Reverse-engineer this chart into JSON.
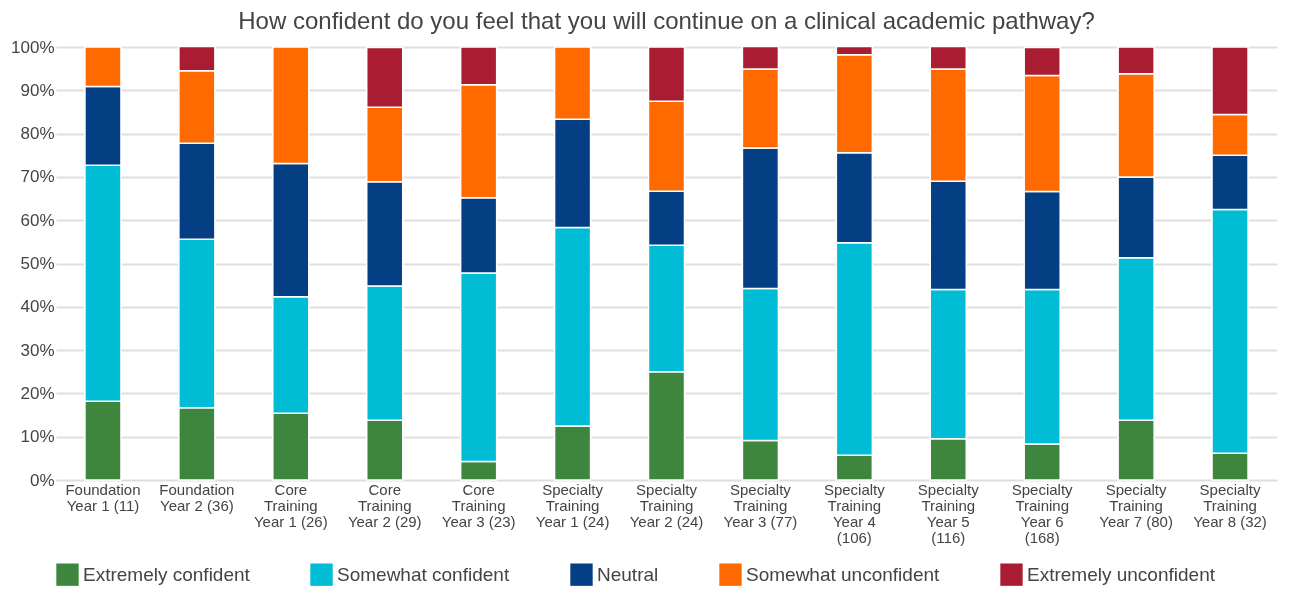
{
  "chart_data": {
    "type": "bar",
    "stacked": true,
    "title": "How confident do you feel that you will continue on a clinical academic pathway?",
    "categories": [
      "Foundation Year 1 (11)",
      "Foundation Year 2 (36)",
      "Core Training Year 1 (26)",
      "Core Training Year 2 (29)",
      "Core Training Year 3 (23)",
      "Specialty Training Year 1 (24)",
      "Specialty Training Year 2 (24)",
      "Specialty Training Year 3 (77)",
      "Specialty Training Year 4 (106)",
      "Specialty Training Year 5 (116)",
      "Specialty Training Year 6 (168)",
      "Specialty Training Year 7 (80)",
      "Specialty Training Year 8 (32)"
    ],
    "series": [
      {
        "name": "Extremely confident",
        "color": "#3e853e",
        "values": [
          18.2,
          16.7,
          15.4,
          13.8,
          4.3,
          12.5,
          25.0,
          9.1,
          5.7,
          9.5,
          8.3,
          13.8,
          6.2
        ]
      },
      {
        "name": "Somewhat confident",
        "color": "#00bcd4",
        "values": [
          54.5,
          38.9,
          26.9,
          31.0,
          43.5,
          45.8,
          29.2,
          35.1,
          49.1,
          34.5,
          35.7,
          37.5,
          56.3
        ]
      },
      {
        "name": "Neutral",
        "color": "#053f83",
        "values": [
          18.2,
          22.2,
          30.8,
          24.1,
          17.4,
          25.0,
          12.5,
          32.5,
          20.8,
          25.0,
          22.6,
          18.7,
          12.5
        ]
      },
      {
        "name": "Somewhat unconfident",
        "color": "#ff6a00",
        "values": [
          9.1,
          16.7,
          26.9,
          17.2,
          26.1,
          16.7,
          20.8,
          18.2,
          22.6,
          25.9,
          26.8,
          23.8,
          9.4
        ]
      },
      {
        "name": "Extremely unconfident",
        "color": "#a91c31",
        "values": [
          null,
          5.6,
          null,
          13.8,
          8.7,
          null,
          12.5,
          5.2,
          1.9,
          5.2,
          6.5,
          6.2,
          15.6
        ]
      }
    ],
    "ylim": [
      0,
      100
    ],
    "yticks": [
      {
        "value": 0,
        "label": "0%"
      },
      {
        "value": 10,
        "label": "10%"
      },
      {
        "value": 20,
        "label": "20%"
      },
      {
        "value": 30,
        "label": "30%"
      },
      {
        "value": 40,
        "label": "40%"
      },
      {
        "value": 50,
        "label": "50%"
      },
      {
        "value": 60,
        "label": "60%"
      },
      {
        "value": 70,
        "label": "70%"
      },
      {
        "value": 80,
        "label": "80%"
      },
      {
        "value": 90,
        "label": "90%"
      },
      {
        "value": 100,
        "label": "100%"
      }
    ],
    "grid": "y",
    "legend": "bottom"
  }
}
